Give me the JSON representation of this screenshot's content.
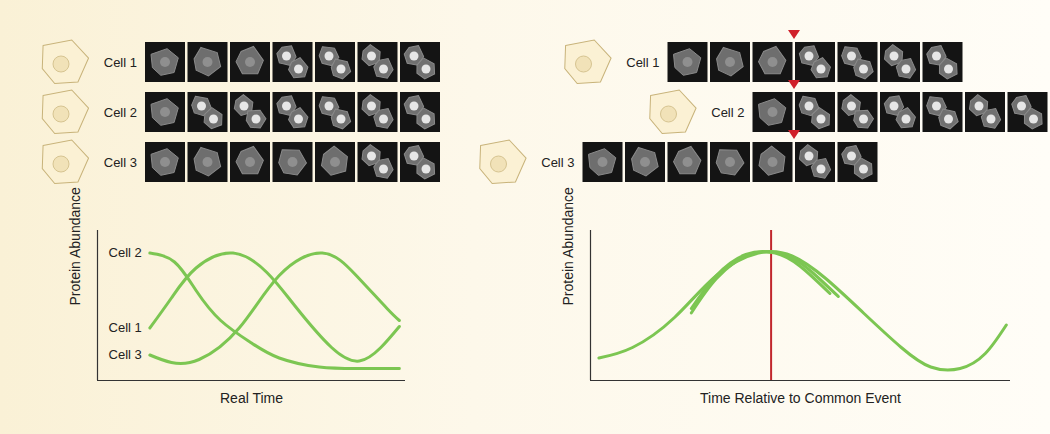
{
  "strips": {
    "left": [
      "Cell 1",
      "Cell 2",
      "Cell 3"
    ],
    "right": [
      "Cell 1",
      "Cell 2",
      "Cell 3"
    ]
  },
  "chart_data": [
    {
      "type": "line",
      "x_label": "Real Time",
      "y_label": "Protein Abundance",
      "xlim": [
        0,
        100
      ],
      "ylim": [
        0,
        100
      ],
      "tick_labels": false,
      "color": "#7cc652",
      "series": [
        {
          "name": "Cell 1",
          "x": [
            17,
            24,
            32,
            44,
            55,
            64,
            76,
            85,
            92,
            98
          ],
          "values": [
            35,
            55,
            75,
            85,
            72,
            50,
            22,
            13,
            22,
            36
          ]
        },
        {
          "name": "Cell 2",
          "x": [
            17,
            25,
            32,
            40,
            50,
            59,
            72,
            85,
            98
          ],
          "values": [
            85,
            79,
            60,
            40,
            25,
            15,
            9,
            8,
            8
          ]
        },
        {
          "name": "Cell 3",
          "x": [
            17,
            24,
            33,
            46,
            59,
            73,
            84,
            94,
            98
          ],
          "values": [
            17,
            12,
            14,
            35,
            70,
            85,
            70,
            48,
            40
          ]
        }
      ]
    },
    {
      "type": "line",
      "x_label": "Time Relative to Common Event",
      "y_label": "Protein Abundance",
      "xlim": [
        0,
        100
      ],
      "ylim": [
        0,
        100
      ],
      "tick_labels": false,
      "color": "#7cc652",
      "series": [
        {
          "x": [
            2,
            10,
            20,
            30,
            40,
            48,
            56,
            65,
            74,
            81,
            88,
            94,
            99
          ],
          "values": [
            15,
            22,
            42,
            70,
            85,
            83,
            68,
            45,
            22,
            9,
            8,
            18,
            37
          ]
        },
        {
          "x": [
            24,
            30,
            37,
            44,
            50,
            57
          ],
          "values": [
            48,
            70,
            84,
            85,
            76,
            58
          ]
        },
        {
          "x": [
            24,
            30,
            38,
            46,
            52,
            59
          ],
          "values": [
            45,
            68,
            84,
            84,
            74,
            56
          ]
        }
      ],
      "annotations": [
        {
          "x": 43,
          "color": "#c1272d"
        }
      ]
    }
  ]
}
